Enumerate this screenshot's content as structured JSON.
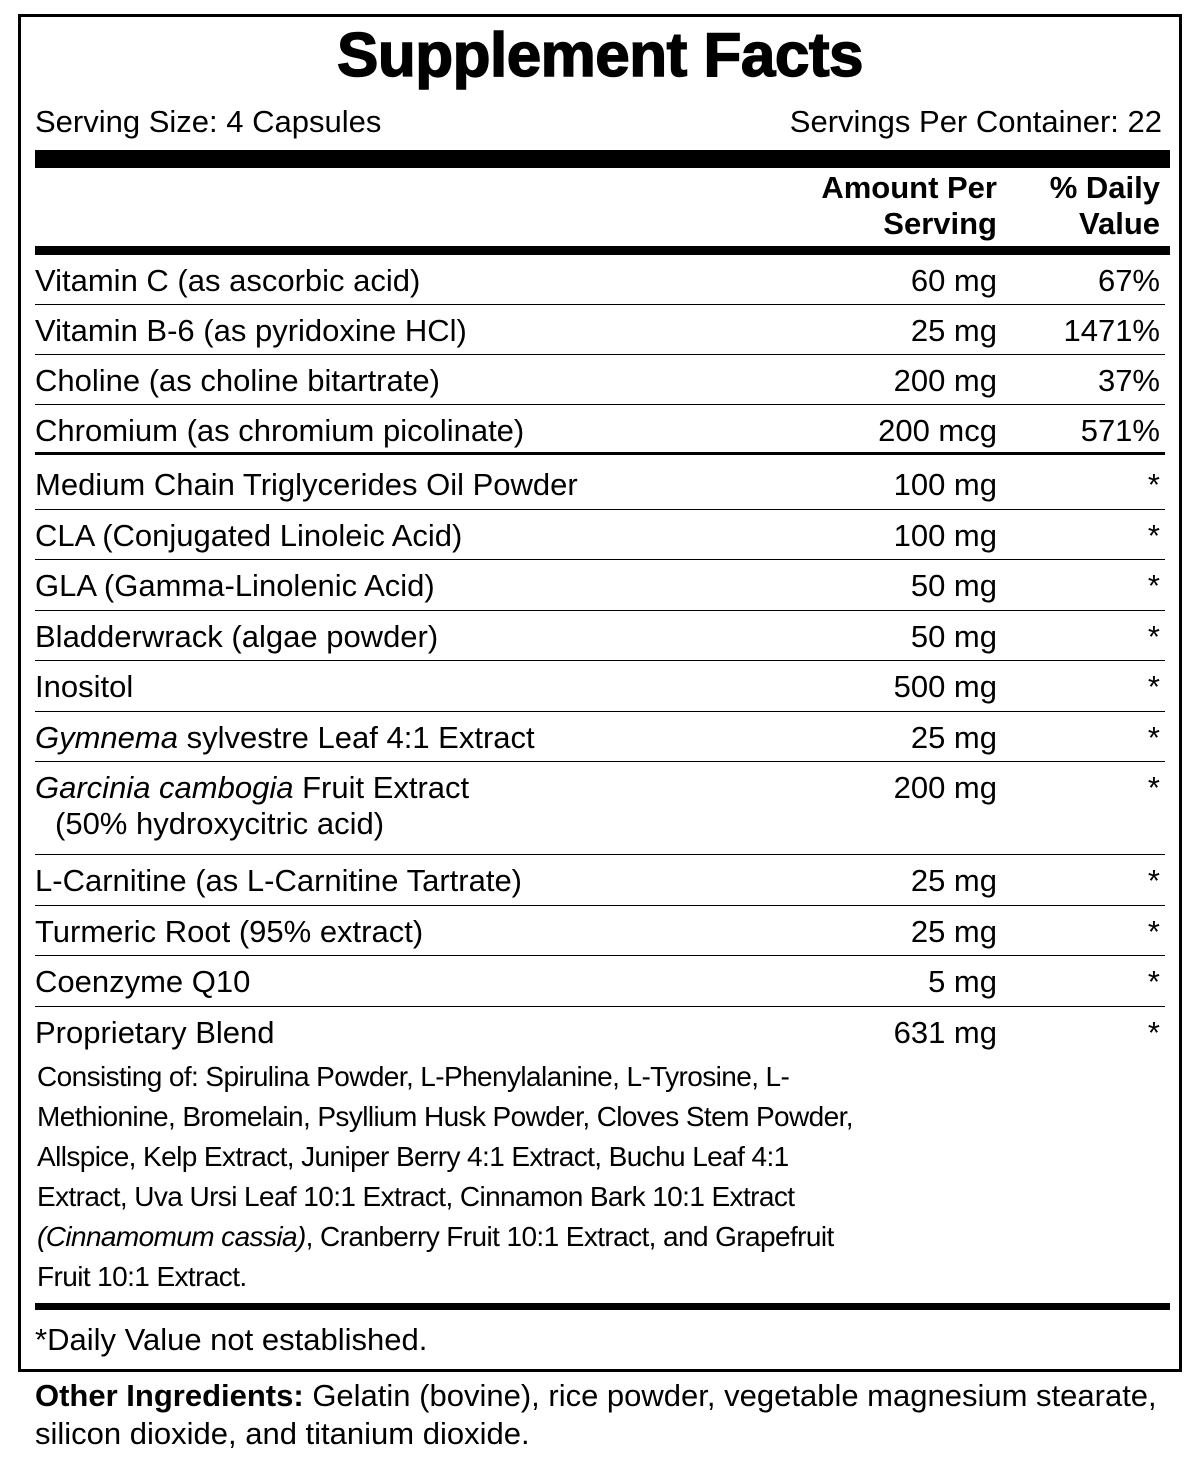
{
  "title": "Supplement Facts",
  "serving_size": "Serving Size: 4 Capsules",
  "servings_per_container": "Servings Per Container: 22",
  "header": {
    "amount_l1": "Amount Per",
    "amount_l2": "Serving",
    "dv_l1": "% Daily",
    "dv_l2": "Value"
  },
  "vitamins": [
    {
      "name": "Vitamin C (as ascorbic acid)",
      "amount": "60 mg",
      "dv": "67%"
    },
    {
      "name": "Vitamin B-6 (as pyridoxine HCl)",
      "amount": "25 mg",
      "dv": "1471%"
    },
    {
      "name": "Choline (as choline bitartrate)",
      "amount": "200 mg",
      "dv": "37%"
    },
    {
      "name": "Chromium (as chromium picolinate)",
      "amount": "200 mcg",
      "dv": "571%"
    }
  ],
  "others": [
    {
      "name": "Medium Chain Triglycerides Oil Powder",
      "amount": "100 mg",
      "dv": "*"
    },
    {
      "name": "CLA (Conjugated Linoleic Acid)",
      "amount": "100 mg",
      "dv": "*"
    },
    {
      "name": "GLA (Gamma-Linolenic Acid)",
      "amount": "50 mg",
      "dv": "*"
    },
    {
      "name": "Bladderwrack (algae powder)",
      "amount": "50 mg",
      "dv": "*"
    },
    {
      "name": "Inositol",
      "amount": "500 mg",
      "dv": "*"
    },
    {
      "italic": "Gymnema",
      "name": " sylvestre Leaf 4:1 Extract",
      "amount": "25 mg",
      "dv": "*"
    },
    {
      "italic": "Garcinia cambogia",
      "name": " Fruit Extract",
      "sub": "(50% hydroxycitric acid)",
      "amount": "200 mg",
      "dv": "*"
    },
    {
      "name": "L-Carnitine (as L-Carnitine Tartrate)",
      "amount": "25 mg",
      "dv": "*"
    },
    {
      "name": "Turmeric Root (95% extract)",
      "amount": "25 mg",
      "dv": "*"
    },
    {
      "name": "Coenzyme Q10",
      "amount": "5 mg",
      "dv": "*"
    }
  ],
  "blend": {
    "name": "Proprietary Blend",
    "amount": "631 mg",
    "dv": "*",
    "text_before": "Consisting of: Spirulina Powder, L-Phenylalanine, L-Tyrosine, L-Methionine, Bromelain, Psyllium Husk Powder, Cloves Stem Powder, Allspice, Kelp Extract, Juniper Berry 4:1 Extract, Buchu Leaf 4:1 Extract, Uva Ursi Leaf 10:1 Extract, Cinnamon Bark 10:1 Extract ",
    "text_italic": "(Cinnamomum cassia)",
    "text_after": ", Cranberry Fruit 10:1 Extract, and Grapefruit Fruit 10:1 Extract."
  },
  "footnote": "*Daily Value not established.",
  "other_ingredients": {
    "label": "Other Ingredients:",
    "text": " Gelatin (bovine), rice powder, vegetable magnesium stearate, silicon dioxide, and titanium dioxide."
  }
}
